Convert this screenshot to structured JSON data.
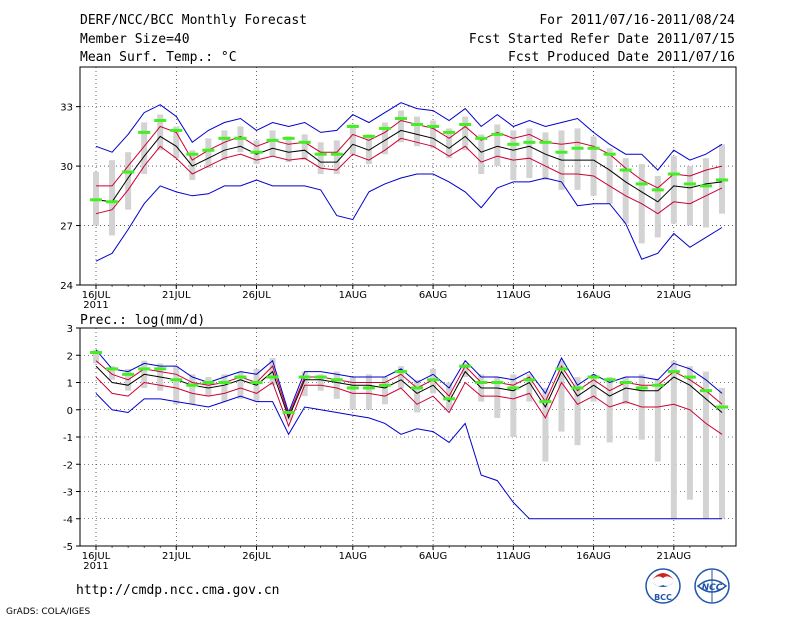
{
  "header": {
    "title": "DERF/NCC/BCC Monthly Forecast",
    "member_size": "Member Size=40",
    "variable": "Mean Surf. Temp.: °C",
    "period": "For 2011/07/16-2011/08/24",
    "started": "Fcst Started Refer Date 2011/07/15",
    "produced": "Fcst Produced Date 2011/07/16"
  },
  "footer": {
    "url": "http://cmdp.ncc.cma.gov.cn",
    "credit": "GrADS: COLA/IGES",
    "logo_bcc": "BCC",
    "logo_ncc": "NCC"
  },
  "colors": {
    "upper_lower": "#0000cc",
    "percentile": "#cc0033",
    "ensemble_mean": "#000000",
    "box": "#d3d3d3",
    "median": "#44ee22"
  },
  "chart_data": [
    {
      "id": "temperature",
      "type": "line",
      "title": "Mean Surf. Temp.: °C",
      "ylim": [
        24,
        35
      ],
      "yticks": [
        24,
        27,
        30,
        33
      ],
      "xlim": [
        0,
        39
      ],
      "xticks": [
        {
          "day": 0,
          "label": "16JUL",
          "sublabel": "2011"
        },
        {
          "day": 5,
          "label": "21JUL"
        },
        {
          "day": 10,
          "label": "26JUL"
        },
        {
          "day": 16,
          "label": "1AUG"
        },
        {
          "day": 21,
          "label": "6AUG"
        },
        {
          "day": 26,
          "label": "11AUG"
        },
        {
          "day": 31,
          "label": "16AUG"
        },
        {
          "day": 36,
          "label": "21AUG"
        }
      ],
      "series": [
        {
          "name": "max",
          "color": "#0000cc",
          "values": [
            31.0,
            30.7,
            31.6,
            32.7,
            33.1,
            32.5,
            31.2,
            31.8,
            32.2,
            32.4,
            31.8,
            32.2,
            32.0,
            32.2,
            31.7,
            31.8,
            32.6,
            32.2,
            32.7,
            33.2,
            32.9,
            32.8,
            32.3,
            32.9,
            32.0,
            32.6,
            32.0,
            32.3,
            32.0,
            32.2,
            32.4,
            31.7,
            31.1,
            30.6,
            30.6,
            29.8,
            30.8,
            30.3,
            30.6,
            31.1
          ]
        },
        {
          "name": "p_high",
          "color": "#cc0033",
          "values": [
            29.0,
            29.0,
            30.0,
            31.0,
            32.0,
            31.7,
            30.3,
            30.8,
            31.2,
            31.5,
            31.0,
            31.3,
            31.1,
            31.2,
            30.7,
            30.7,
            31.6,
            31.3,
            31.7,
            32.3,
            32.1,
            31.9,
            31.4,
            32.0,
            31.3,
            31.7,
            31.4,
            31.6,
            31.2,
            31.1,
            31.2,
            31.0,
            30.6,
            29.9,
            29.3,
            28.9,
            29.6,
            29.5,
            29.8,
            30.0
          ]
        },
        {
          "name": "mean",
          "color": "#000000",
          "values": [
            28.3,
            28.2,
            29.4,
            30.5,
            31.5,
            31.0,
            30.0,
            30.4,
            30.8,
            31.0,
            30.6,
            30.9,
            30.7,
            30.8,
            30.2,
            30.2,
            31.1,
            30.8,
            31.3,
            31.8,
            31.6,
            31.4,
            30.9,
            31.5,
            30.7,
            31.0,
            30.8,
            31.0,
            30.6,
            30.3,
            30.3,
            30.3,
            29.8,
            29.2,
            28.7,
            28.2,
            29.0,
            28.9,
            29.1,
            29.2
          ]
        },
        {
          "name": "p_low",
          "color": "#cc0033",
          "values": [
            27.6,
            27.8,
            28.8,
            30.0,
            31.0,
            30.4,
            29.6,
            30.0,
            30.4,
            30.6,
            30.3,
            30.5,
            30.3,
            30.4,
            29.9,
            29.8,
            30.6,
            30.3,
            30.8,
            31.4,
            31.2,
            31.0,
            30.5,
            31.0,
            30.2,
            30.5,
            30.3,
            30.4,
            30.0,
            29.6,
            29.6,
            29.5,
            29.0,
            28.5,
            28.1,
            27.6,
            28.2,
            28.1,
            28.5,
            28.9
          ]
        },
        {
          "name": "min",
          "color": "#0000cc",
          "values": [
            25.2,
            25.6,
            26.8,
            28.1,
            29.0,
            28.7,
            28.5,
            28.6,
            29.0,
            29.0,
            29.3,
            29.0,
            29.0,
            29.0,
            28.8,
            27.5,
            27.3,
            28.7,
            29.1,
            29.4,
            29.6,
            29.6,
            29.2,
            28.7,
            27.9,
            28.9,
            29.2,
            29.2,
            29.4,
            29.2,
            28.0,
            28.1,
            28.1,
            27.1,
            25.3,
            25.6,
            26.6,
            25.9,
            26.4,
            26.9
          ]
        }
      ],
      "boxes": {
        "low": [
          27.0,
          26.5,
          27.8,
          29.6,
          30.8,
          30.4,
          29.3,
          29.9,
          30.3,
          30.7,
          30.1,
          30.5,
          30.2,
          30.3,
          29.6,
          29.6,
          30.6,
          30.1,
          30.6,
          31.2,
          31.0,
          30.9,
          30.4,
          30.8,
          29.6,
          30.0,
          29.3,
          29.4,
          29.3,
          28.8,
          28.8,
          28.5,
          28.1,
          27.1,
          26.1,
          26.4,
          27.1,
          27.0,
          26.9,
          27.6
        ],
        "high": [
          29.7,
          30.3,
          30.7,
          32.2,
          32.6,
          32.0,
          30.8,
          31.4,
          31.8,
          32.0,
          31.3,
          31.8,
          31.5,
          31.6,
          31.2,
          31.3,
          32.1,
          31.6,
          32.2,
          32.8,
          32.5,
          32.3,
          31.9,
          32.5,
          31.6,
          32.1,
          31.8,
          31.9,
          31.7,
          31.8,
          31.9,
          31.5,
          30.9,
          30.4,
          30.1,
          29.5,
          30.5,
          30.0,
          30.4,
          31.1
        ],
        "median": [
          28.3,
          28.2,
          29.7,
          31.7,
          32.3,
          31.8,
          30.6,
          30.8,
          31.4,
          31.4,
          30.7,
          31.3,
          31.4,
          31.2,
          30.6,
          30.6,
          32.0,
          31.5,
          31.9,
          32.4,
          32.1,
          32.0,
          31.7,
          32.1,
          31.4,
          31.6,
          31.1,
          31.2,
          31.2,
          30.7,
          30.9,
          30.9,
          30.6,
          29.8,
          29.1,
          28.8,
          29.6,
          29.1,
          29.0,
          29.3
        ]
      }
    },
    {
      "id": "precipitation",
      "type": "line",
      "title": "Prec.: log(mm/d)",
      "ylim": [
        -5,
        3
      ],
      "yticks": [
        -5,
        -4,
        -3,
        -2,
        -1,
        0,
        1,
        2,
        3
      ],
      "xlim": [
        0,
        39
      ],
      "xticks": [
        {
          "day": 0,
          "label": "16JUL",
          "sublabel": "2011"
        },
        {
          "day": 5,
          "label": "21JUL"
        },
        {
          "day": 10,
          "label": "26JUL"
        },
        {
          "day": 16,
          "label": "1AUG"
        },
        {
          "day": 21,
          "label": "6AUG"
        },
        {
          "day": 26,
          "label": "11AUG"
        },
        {
          "day": 31,
          "label": "16AUG"
        },
        {
          "day": 36,
          "label": "21AUG"
        }
      ],
      "series": [
        {
          "name": "max",
          "color": "#0000cc",
          "values": [
            2.2,
            1.5,
            1.4,
            1.7,
            1.6,
            1.6,
            1.2,
            1.0,
            1.2,
            1.4,
            1.3,
            1.8,
            -0.1,
            1.4,
            1.4,
            1.3,
            1.2,
            1.2,
            1.2,
            1.5,
            1.0,
            1.3,
            0.8,
            1.8,
            1.2,
            1.2,
            1.1,
            1.4,
            0.6,
            1.9,
            0.9,
            1.3,
            1.0,
            1.2,
            1.2,
            1.1,
            1.7,
            1.5,
            1.1,
            0.6
          ]
        },
        {
          "name": "p_high",
          "color": "#cc0033",
          "values": [
            1.8,
            1.3,
            1.1,
            1.5,
            1.4,
            1.3,
            1.0,
            0.9,
            1.0,
            1.2,
            1.0,
            1.6,
            -0.2,
            1.2,
            1.2,
            1.1,
            1.0,
            1.0,
            1.0,
            1.3,
            0.8,
            1.1,
            0.5,
            1.6,
            1.0,
            1.0,
            0.9,
            1.2,
            0.3,
            1.6,
            0.7,
            1.1,
            0.7,
            1.0,
            0.9,
            0.9,
            1.4,
            1.1,
            0.7,
            0.2
          ]
        },
        {
          "name": "mean",
          "color": "#000000",
          "values": [
            1.6,
            1.0,
            0.9,
            1.3,
            1.2,
            1.1,
            0.9,
            0.8,
            0.9,
            1.1,
            0.9,
            1.4,
            -0.3,
            1.1,
            1.1,
            1.0,
            0.9,
            0.9,
            0.8,
            1.1,
            0.6,
            0.9,
            0.3,
            1.4,
            0.8,
            0.8,
            0.7,
            1.0,
            0.1,
            1.4,
            0.5,
            0.9,
            0.5,
            0.8,
            0.7,
            0.7,
            1.2,
            0.9,
            0.4,
            -0.1
          ]
        },
        {
          "name": "p_low",
          "color": "#cc0033",
          "values": [
            1.2,
            0.6,
            0.5,
            1.0,
            0.9,
            0.8,
            0.6,
            0.5,
            0.6,
            0.8,
            0.6,
            1.0,
            -0.6,
            0.9,
            0.9,
            0.8,
            0.6,
            0.6,
            0.5,
            0.8,
            0.2,
            0.5,
            -0.1,
            1.0,
            0.5,
            0.5,
            0.4,
            0.6,
            -0.3,
            1.0,
            0.2,
            0.5,
            0.1,
            0.3,
            0.1,
            0.1,
            0.2,
            0.0,
            -0.5,
            -0.9
          ]
        },
        {
          "name": "min",
          "color": "#0000cc",
          "values": [
            0.6,
            0.0,
            -0.1,
            0.4,
            0.4,
            0.3,
            0.2,
            0.1,
            0.3,
            0.5,
            0.3,
            0.3,
            -0.9,
            0.1,
            0.0,
            -0.1,
            -0.2,
            -0.3,
            -0.5,
            -0.9,
            -0.7,
            -0.8,
            -1.2,
            -0.5,
            -2.4,
            -2.6,
            -3.4,
            -4.0,
            -4.0,
            -4.0,
            -4.0,
            -4.0,
            -4.0,
            -4.0,
            -4.0,
            -4.0,
            -4.0,
            -4.0,
            -4.0,
            -4.0
          ]
        }
      ],
      "boxes": {
        "low": [
          1.7,
          1.1,
          0.7,
          0.8,
          0.7,
          0.2,
          0.2,
          0.5,
          0.3,
          0.4,
          0.3,
          0.9,
          -0.4,
          0.5,
          0.7,
          0.4,
          0.0,
          0.0,
          0.2,
          0.8,
          -0.1,
          0.6,
          0.0,
          1.2,
          0.3,
          -0.3,
          -1.0,
          0.3,
          -1.9,
          -0.8,
          -1.3,
          0.3,
          -1.2,
          0.2,
          -1.1,
          -1.9,
          -4.0,
          -3.3,
          -4.0,
          -4.0
        ],
        "high": [
          2.2,
          1.6,
          1.5,
          1.8,
          1.7,
          1.6,
          1.3,
          1.2,
          1.3,
          1.4,
          1.5,
          1.9,
          0.0,
          1.4,
          1.3,
          1.4,
          1.2,
          1.3,
          1.2,
          1.6,
          1.1,
          1.5,
          1.0,
          1.7,
          1.3,
          1.2,
          1.3,
          1.3,
          0.8,
          1.8,
          1.2,
          1.3,
          1.2,
          1.2,
          1.3,
          1.1,
          1.8,
          1.6,
          1.4,
          0.8
        ],
        "median": [
          2.1,
          1.5,
          1.3,
          1.5,
          1.5,
          1.1,
          0.9,
          1.0,
          1.0,
          1.2,
          1.0,
          1.2,
          -0.1,
          1.2,
          1.2,
          1.1,
          0.8,
          0.8,
          0.9,
          1.4,
          0.8,
          1.1,
          0.4,
          1.6,
          1.0,
          1.0,
          0.8,
          1.1,
          0.3,
          1.5,
          0.8,
          1.2,
          1.1,
          1.0,
          0.8,
          0.9,
          1.4,
          1.2,
          0.7,
          0.1
        ]
      }
    }
  ]
}
